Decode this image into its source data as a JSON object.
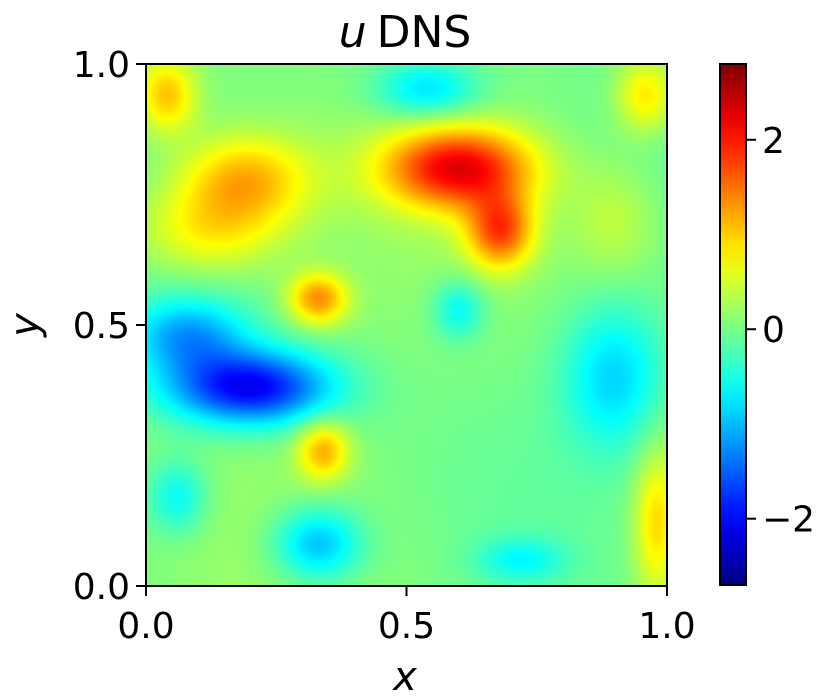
{
  "chart_data": {
    "type": "heatmap",
    "title_var": "u",
    "title_rest": "DNS",
    "xlabel": "x",
    "ylabel": "y",
    "xlim": [
      0.0,
      1.0
    ],
    "ylim": [
      0.0,
      1.0
    ],
    "x_ticks": [
      "0.0",
      "0.5",
      "1.0"
    ],
    "y_ticks": [
      "0.0",
      "0.5",
      "1.0"
    ],
    "colorbar": {
      "colormap": "jet",
      "range": [
        -2.7,
        2.8
      ],
      "tick_values": [
        -2,
        0,
        2
      ],
      "tick_labels": [
        "−2",
        "0",
        "2"
      ]
    },
    "grid": false,
    "features": [
      {
        "x": 0.04,
        "y": 0.94,
        "value": 1.0,
        "sx": 0.04,
        "sy": 0.05
      },
      {
        "x": 0.96,
        "y": 0.94,
        "value": 0.9,
        "sx": 0.04,
        "sy": 0.05
      },
      {
        "x": 0.54,
        "y": 0.95,
        "value": -0.9,
        "sx": 0.07,
        "sy": 0.04
      },
      {
        "x": 0.19,
        "y": 0.78,
        "value": 1.1,
        "sx": 0.09,
        "sy": 0.06
      },
      {
        "x": 0.12,
        "y": 0.68,
        "value": 0.8,
        "sx": 0.1,
        "sy": 0.06
      },
      {
        "x": 0.6,
        "y": 0.8,
        "value": 2.1,
        "sx": 0.1,
        "sy": 0.055
      },
      {
        "x": 0.68,
        "y": 0.68,
        "value": 1.6,
        "sx": 0.045,
        "sy": 0.05
      },
      {
        "x": 0.33,
        "y": 0.55,
        "value": 1.3,
        "sx": 0.04,
        "sy": 0.035
      },
      {
        "x": 0.6,
        "y": 0.53,
        "value": -0.7,
        "sx": 0.035,
        "sy": 0.04
      },
      {
        "x": 0.2,
        "y": 0.38,
        "value": -2.1,
        "sx": 0.11,
        "sy": 0.05
      },
      {
        "x": 0.08,
        "y": 0.48,
        "value": -1.1,
        "sx": 0.08,
        "sy": 0.05
      },
      {
        "x": 0.9,
        "y": 0.4,
        "value": -0.9,
        "sx": 0.07,
        "sy": 0.1
      },
      {
        "x": 0.34,
        "y": 0.26,
        "value": 1.1,
        "sx": 0.035,
        "sy": 0.04
      },
      {
        "x": 0.06,
        "y": 0.17,
        "value": -0.7,
        "sx": 0.04,
        "sy": 0.05
      },
      {
        "x": 0.33,
        "y": 0.08,
        "value": -1.1,
        "sx": 0.06,
        "sy": 0.05
      },
      {
        "x": 0.72,
        "y": 0.05,
        "value": -0.6,
        "sx": 0.06,
        "sy": 0.03
      },
      {
        "x": 0.98,
        "y": 0.12,
        "value": 0.9,
        "sx": 0.03,
        "sy": 0.1
      },
      {
        "x": 0.9,
        "y": 0.7,
        "value": 0.4,
        "sx": 0.06,
        "sy": 0.08
      }
    ]
  }
}
